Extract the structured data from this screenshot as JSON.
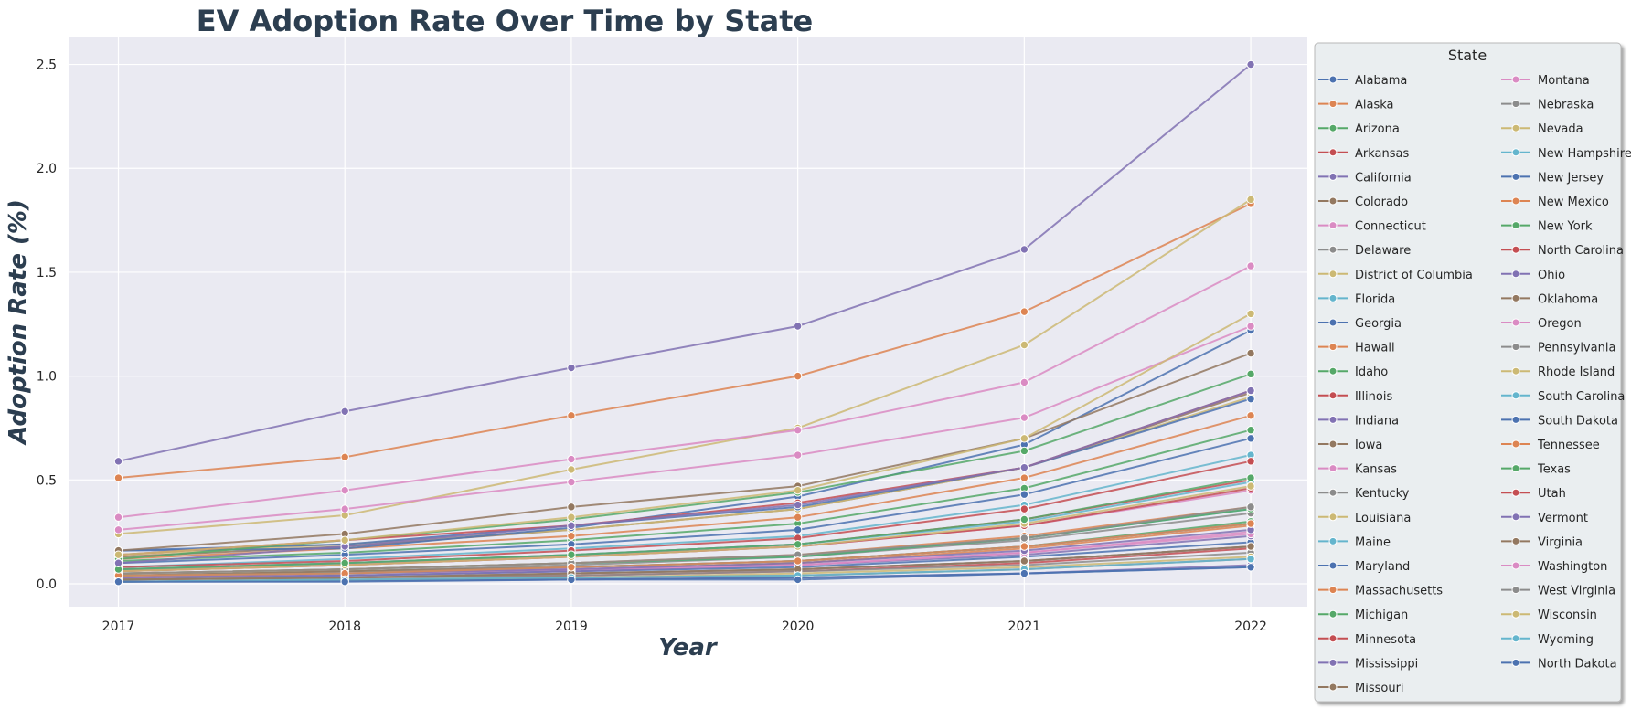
{
  "chart_data": {
    "type": "line",
    "title": "EV Adoption Rate Over Time by State",
    "xlabel": "Year",
    "ylabel": "Adoption Rate (%)",
    "x": [
      2017,
      2018,
      2019,
      2020,
      2021,
      2022
    ],
    "x_tick_labels": [
      "2017",
      "2018",
      "2019",
      "2020",
      "2021",
      "2022"
    ],
    "y_ticks": [
      0.0,
      0.5,
      1.0,
      1.5,
      2.0,
      2.5
    ],
    "y_tick_labels": [
      "0.0",
      "0.5",
      "1.0",
      "1.5",
      "2.0",
      "2.5"
    ],
    "xlim": [
      2016.78,
      2022.25
    ],
    "ylim": [
      -0.11,
      2.63
    ],
    "grid": true,
    "background_color": "#eaeaf2",
    "legend": {
      "title": "State",
      "placement": "outside-right",
      "columns": 2
    },
    "palette": [
      "#4c72b0",
      "#dd8452",
      "#55a868",
      "#c44e52",
      "#8172b3",
      "#937860",
      "#da8bc3",
      "#8c8c8c",
      "#ccb974",
      "#64b5cd"
    ],
    "series": [
      {
        "name": "Alabama",
        "values": [
          0.03,
          0.04,
          0.06,
          0.08,
          0.13,
          0.2
        ]
      },
      {
        "name": "Alaska",
        "values": [
          0.04,
          0.05,
          0.07,
          0.1,
          0.17,
          0.28
        ]
      },
      {
        "name": "Arizona",
        "values": [
          0.11,
          0.15,
          0.21,
          0.29,
          0.46,
          0.74
        ]
      },
      {
        "name": "Arkansas",
        "values": [
          0.02,
          0.03,
          0.04,
          0.06,
          0.1,
          0.17
        ]
      },
      {
        "name": "California",
        "values": [
          0.59,
          0.83,
          1.04,
          1.24,
          1.61,
          2.5
        ]
      },
      {
        "name": "Colorado",
        "values": [
          0.13,
          0.18,
          0.26,
          0.36,
          0.56,
          0.92
        ]
      },
      {
        "name": "Connecticut",
        "values": [
          0.06,
          0.09,
          0.13,
          0.18,
          0.28,
          0.45
        ]
      },
      {
        "name": "Delaware",
        "values": [
          0.04,
          0.06,
          0.09,
          0.13,
          0.21,
          0.34
        ]
      },
      {
        "name": "District of Columbia",
        "values": [
          0.14,
          0.19,
          0.26,
          0.36,
          0.56,
          0.9
        ]
      },
      {
        "name": "Florida",
        "values": [
          0.08,
          0.12,
          0.17,
          0.23,
          0.38,
          0.62
        ]
      },
      {
        "name": "Georgia",
        "values": [
          0.1,
          0.14,
          0.19,
          0.26,
          0.43,
          0.7
        ]
      },
      {
        "name": "Hawaii",
        "values": [
          0.51,
          0.61,
          0.81,
          1.0,
          1.31,
          1.83
        ]
      },
      {
        "name": "Idaho",
        "values": [
          0.04,
          0.05,
          0.08,
          0.11,
          0.18,
          0.3
        ]
      },
      {
        "name": "Illinois",
        "values": [
          0.07,
          0.1,
          0.14,
          0.19,
          0.31,
          0.5
        ]
      },
      {
        "name": "Indiana",
        "values": [
          0.03,
          0.04,
          0.06,
          0.09,
          0.14,
          0.23
        ]
      },
      {
        "name": "Iowa",
        "values": [
          0.02,
          0.03,
          0.05,
          0.07,
          0.11,
          0.18
        ]
      },
      {
        "name": "Kansas",
        "values": [
          0.03,
          0.05,
          0.07,
          0.09,
          0.15,
          0.25
        ]
      },
      {
        "name": "Kentucky",
        "values": [
          0.02,
          0.03,
          0.04,
          0.06,
          0.09,
          0.15
        ]
      },
      {
        "name": "Louisiana",
        "values": [
          0.01,
          0.02,
          0.03,
          0.05,
          0.08,
          0.13
        ]
      },
      {
        "name": "Maine",
        "values": [
          0.05,
          0.07,
          0.1,
          0.13,
          0.22,
          0.36
        ]
      },
      {
        "name": "Maryland",
        "values": [
          0.16,
          0.19,
          0.28,
          0.37,
          0.56,
          0.89
        ]
      },
      {
        "name": "Massachusetts",
        "values": [
          0.12,
          0.17,
          0.23,
          0.32,
          0.51,
          0.81
        ]
      },
      {
        "name": "Michigan",
        "values": [
          0.05,
          0.07,
          0.1,
          0.13,
          0.22,
          0.36
        ]
      },
      {
        "name": "Minnesota",
        "values": [
          0.08,
          0.11,
          0.16,
          0.22,
          0.36,
          0.59
        ]
      },
      {
        "name": "Mississippi",
        "values": [
          0.01,
          0.015,
          0.02,
          0.03,
          0.05,
          0.09
        ]
      },
      {
        "name": "Missouri",
        "values": [
          0.04,
          0.06,
          0.08,
          0.11,
          0.18,
          0.29
        ]
      },
      {
        "name": "Montana",
        "values": [
          0.03,
          0.05,
          0.07,
          0.09,
          0.15,
          0.24
        ]
      },
      {
        "name": "Nebraska",
        "values": [
          0.02,
          0.03,
          0.05,
          0.07,
          0.11,
          0.18
        ]
      },
      {
        "name": "Nevada",
        "values": [
          0.24,
          0.33,
          0.55,
          0.75,
          1.15,
          1.85
        ]
      },
      {
        "name": "New Hampshire",
        "values": [
          0.07,
          0.1,
          0.14,
          0.19,
          0.3,
          0.49
        ]
      },
      {
        "name": "New Jersey",
        "values": [
          0.16,
          0.17,
          0.27,
          0.42,
          0.67,
          1.22
        ]
      },
      {
        "name": "New Mexico",
        "values": [
          0.05,
          0.07,
          0.1,
          0.14,
          0.23,
          0.37
        ]
      },
      {
        "name": "New York",
        "values": [
          0.12,
          0.21,
          0.31,
          0.44,
          0.64,
          1.01
        ]
      },
      {
        "name": "North Carolina",
        "values": [
          0.06,
          0.09,
          0.13,
          0.18,
          0.28,
          0.46
        ]
      },
      {
        "name": "Ohio",
        "values": [
          0.03,
          0.05,
          0.07,
          0.1,
          0.16,
          0.26
        ]
      },
      {
        "name": "Oklahoma",
        "values": [
          0.02,
          0.03,
          0.05,
          0.07,
          0.11,
          0.18
        ]
      },
      {
        "name": "Oregon",
        "values": [
          0.32,
          0.45,
          0.6,
          0.74,
          0.97,
          1.53
        ]
      },
      {
        "name": "Pennsylvania",
        "values": [
          0.05,
          0.07,
          0.1,
          0.14,
          0.22,
          0.37
        ]
      },
      {
        "name": "Rhode Island",
        "values": [
          0.06,
          0.09,
          0.13,
          0.18,
          0.29,
          0.47
        ]
      },
      {
        "name": "South Carolina",
        "values": [
          0.04,
          0.05,
          0.08,
          0.11,
          0.18,
          0.29
        ]
      },
      {
        "name": "South Dakota",
        "values": [
          0.01,
          0.015,
          0.02,
          0.03,
          0.05,
          0.08
        ]
      },
      {
        "name": "Tennessee",
        "values": [
          0.04,
          0.05,
          0.08,
          0.11,
          0.18,
          0.29
        ]
      },
      {
        "name": "Texas",
        "values": [
          0.07,
          0.1,
          0.14,
          0.19,
          0.31,
          0.51
        ]
      },
      {
        "name": "Utah",
        "values": [
          0.14,
          0.21,
          0.28,
          0.39,
          0.56,
          0.93
        ]
      },
      {
        "name": "Vermont",
        "values": [
          0.1,
          0.18,
          0.28,
          0.38,
          0.56,
          0.93
        ]
      },
      {
        "name": "Virginia",
        "values": [
          0.16,
          0.24,
          0.37,
          0.47,
          0.7,
          1.11
        ]
      },
      {
        "name": "Washington",
        "values": [
          0.26,
          0.36,
          0.49,
          0.62,
          0.8,
          1.24
        ]
      },
      {
        "name": "West Virginia",
        "values": [
          0.01,
          0.02,
          0.03,
          0.04,
          0.07,
          0.12
        ]
      },
      {
        "name": "Wisconsin",
        "values": [
          0.14,
          0.21,
          0.32,
          0.45,
          0.7,
          1.3
        ]
      },
      {
        "name": "Wyoming",
        "values": [
          0.01,
          0.02,
          0.03,
          0.04,
          0.07,
          0.12
        ]
      },
      {
        "name": "North Dakota",
        "values": [
          0.01,
          0.01,
          0.02,
          0.02,
          0.05,
          0.08
        ]
      }
    ]
  }
}
